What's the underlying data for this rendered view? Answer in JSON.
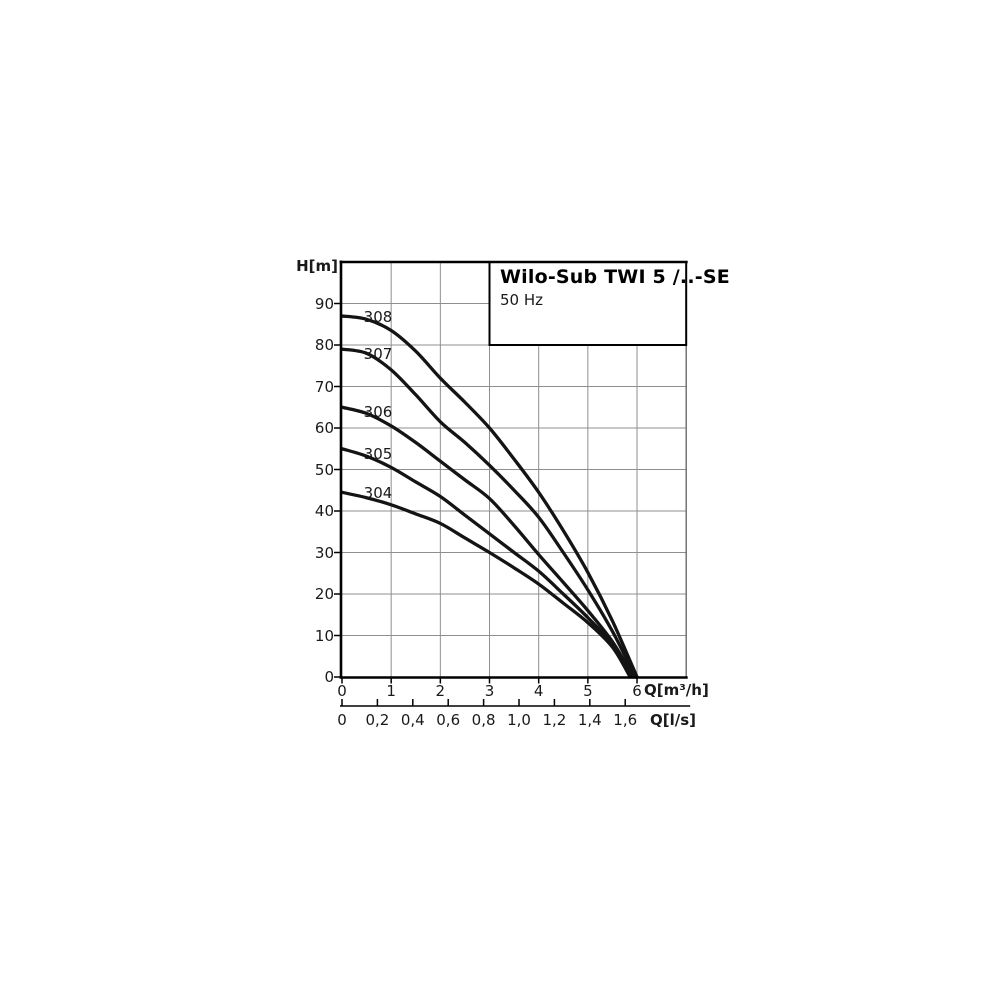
{
  "chart_data": {
    "type": "line",
    "title": "Wilo-Sub TWI 5 /..-SE",
    "subtitle": "50 Hz",
    "ylabel": "H[m]",
    "xlabel_primary": "Q[m³/h]",
    "xlabel_secondary": "Q[l/s]",
    "x_axis_primary_unit": "m³/h",
    "x_axis_secondary_unit": "l/s",
    "xlim": [
      0,
      7
    ],
    "ylim": [
      0,
      100
    ],
    "grid": true,
    "y_ticks": [
      0,
      10,
      20,
      30,
      40,
      50,
      60,
      70,
      80,
      90
    ],
    "x_ticks_m3h": [
      0,
      1,
      2,
      3,
      4,
      5,
      6
    ],
    "x_ticks_ls": {
      "values": [
        0,
        0.2,
        0.4,
        0.6,
        0.8,
        1.0,
        1.2,
        1.4,
        1.6
      ],
      "labels": [
        "0",
        "0,2",
        "0,4",
        "0,6",
        "0,8",
        "1,0",
        "1,2",
        "1,4",
        "1,6"
      ]
    },
    "ls_to_m3h_factor": 3.6,
    "series": [
      {
        "name": "308",
        "points": [
          [
            0,
            87
          ],
          [
            0.5,
            86.2
          ],
          [
            1,
            83.5
          ],
          [
            1.5,
            78.5
          ],
          [
            2,
            72
          ],
          [
            2.5,
            66.2
          ],
          [
            3,
            60
          ],
          [
            3.5,
            52.5
          ],
          [
            4,
            44.5
          ],
          [
            4.5,
            35.3
          ],
          [
            5,
            25.2
          ],
          [
            5.5,
            13.5
          ],
          [
            6,
            0
          ]
        ]
      },
      {
        "name": "307",
        "points": [
          [
            0,
            79
          ],
          [
            0.5,
            78
          ],
          [
            1,
            74
          ],
          [
            1.5,
            68
          ],
          [
            2,
            61.5
          ],
          [
            2.5,
            56.5
          ],
          [
            3,
            51
          ],
          [
            3.5,
            45
          ],
          [
            4,
            38.5
          ],
          [
            4.5,
            30
          ],
          [
            5,
            21
          ],
          [
            5.5,
            11
          ],
          [
            5.97,
            0
          ]
        ]
      },
      {
        "name": "306",
        "points": [
          [
            0,
            65
          ],
          [
            0.5,
            63.5
          ],
          [
            1,
            60.5
          ],
          [
            1.5,
            56.5
          ],
          [
            2,
            52
          ],
          [
            2.5,
            47.5
          ],
          [
            3,
            43
          ],
          [
            3.5,
            36.5
          ],
          [
            4,
            29.5
          ],
          [
            4.5,
            22.8
          ],
          [
            5,
            16
          ],
          [
            5.5,
            8.5
          ],
          [
            5.93,
            0
          ]
        ]
      },
      {
        "name": "305",
        "points": [
          [
            0,
            55
          ],
          [
            0.5,
            53.2
          ],
          [
            1,
            50.5
          ],
          [
            1.5,
            47
          ],
          [
            2,
            43.5
          ],
          [
            2.5,
            39
          ],
          [
            3,
            34.5
          ],
          [
            3.5,
            30
          ],
          [
            4,
            25.5
          ],
          [
            4.5,
            20
          ],
          [
            5,
            14.3
          ],
          [
            5.5,
            7.8
          ],
          [
            5.9,
            0
          ]
        ]
      },
      {
        "name": "304",
        "points": [
          [
            0,
            44.5
          ],
          [
            0.5,
            43.2
          ],
          [
            1,
            41.5
          ],
          [
            1.5,
            39.3
          ],
          [
            2,
            37
          ],
          [
            2.5,
            33.5
          ],
          [
            3,
            30
          ],
          [
            3.5,
            26.3
          ],
          [
            4,
            22.4
          ],
          [
            4.5,
            17.8
          ],
          [
            5,
            13.1
          ],
          [
            5.5,
            7.2
          ],
          [
            5.86,
            0
          ]
        ]
      }
    ],
    "colors": {
      "curve": "#141414",
      "grid": "#8f8f8f",
      "axis": "#000000",
      "right_border": "#5f5f5f",
      "background": "#ffffff"
    },
    "legend_position": "curve-start-labels"
  }
}
